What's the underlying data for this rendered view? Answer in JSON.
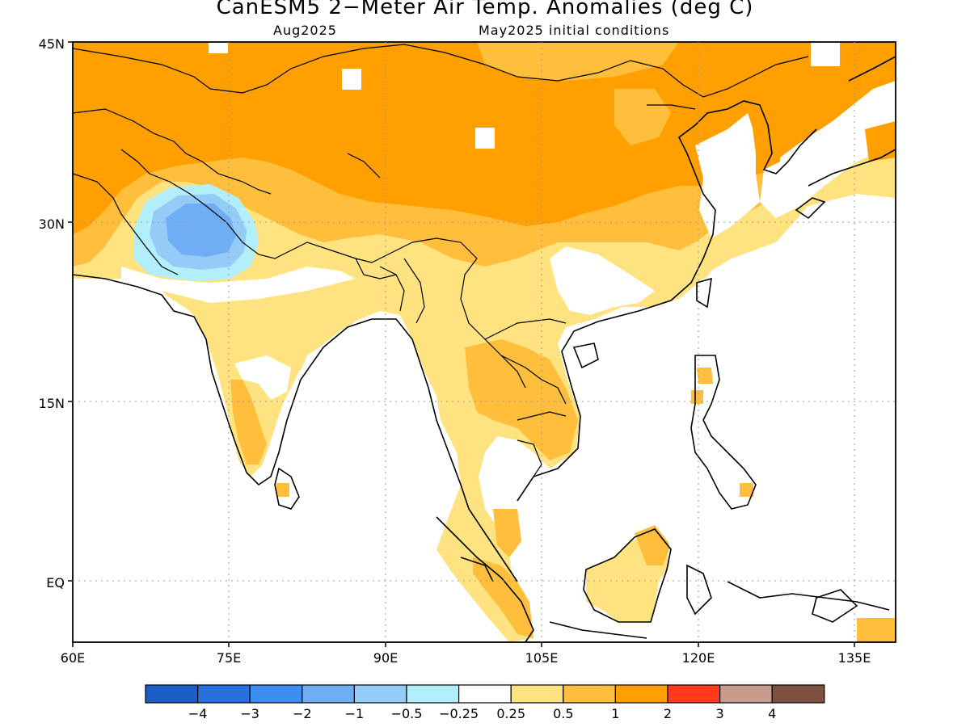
{
  "title": "CanESM5 2−Meter Air Temp. Anomalies (deg C)",
  "subtitle_left": "Aug2025",
  "subtitle_right": "May2025 initial conditions",
  "lat_labels": [
    "45N",
    "30N",
    "15N",
    "EQ"
  ],
  "lon_labels": [
    "60E",
    "75E",
    "90E",
    "105E",
    "120E",
    "135E"
  ],
  "colorbar": {
    "colors": [
      "#1a5fc8",
      "#2a6fe0",
      "#3c8ef0",
      "#6faef5",
      "#94cbf7",
      "#b3eefc",
      "#ffffff",
      "#ffe380",
      "#ffbf3c",
      "#ff9f00",
      "#ff3a1a",
      "#c89c8c",
      "#7d5042"
    ],
    "labels": [
      "−4",
      "−3",
      "−2",
      "−1",
      "−0.5",
      "−0.25",
      "0.25",
      "0.5",
      "1",
      "2",
      "3",
      "4"
    ]
  },
  "colors": {
    "deep_orange": "#ff9f00",
    "mid_orange": "#ffbf3c",
    "light_yellow": "#ffe380",
    "light_blue": "#b3eefc",
    "mid_blue": "#94cbf7",
    "blue": "#6faef5"
  }
}
